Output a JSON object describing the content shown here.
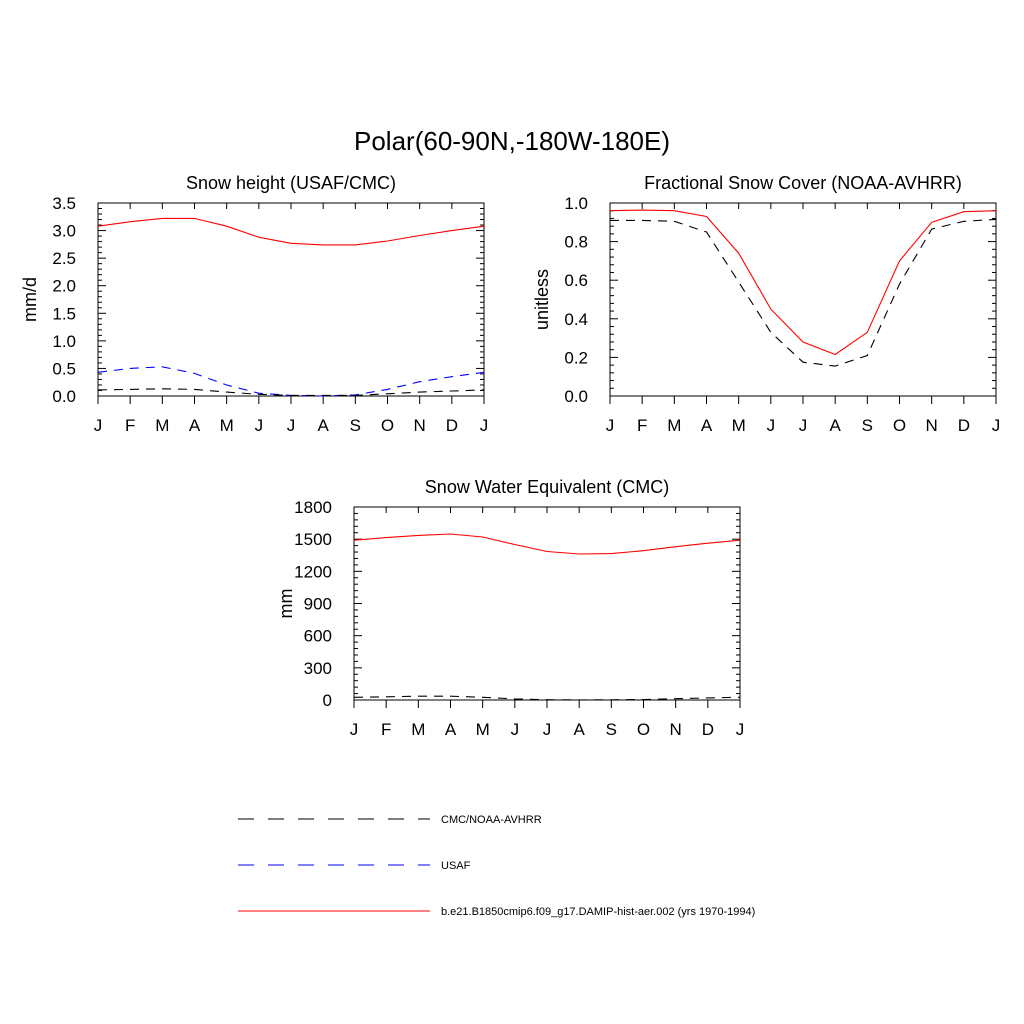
{
  "main_title": "Polar(60-90N,-180W-180E)",
  "months": [
    "J",
    "F",
    "M",
    "A",
    "M",
    "J",
    "J",
    "A",
    "S",
    "O",
    "N",
    "D",
    "J"
  ],
  "colors": {
    "model": "#ff0000",
    "usaf": "#0000ff",
    "obs": "#000000",
    "axis": "#000000"
  },
  "legend": [
    {
      "label": "CMC/NOAA-AVHRR",
      "color": "#000000",
      "dash": "dashed"
    },
    {
      "label": "USAF",
      "color": "#0000ff",
      "dash": "dashed"
    },
    {
      "label": "b.e21.B1850cmip6.f09_g17.DAMIP-hist-aer.002 (yrs 1970-1994)",
      "color": "#ff0000",
      "dash": "solid"
    }
  ],
  "chart_data": [
    {
      "type": "line",
      "title": "Snow height (USAF/CMC)",
      "xlabel": "",
      "ylabel": "mm/d",
      "categories": [
        "J",
        "F",
        "M",
        "A",
        "M",
        "J",
        "J",
        "A",
        "S",
        "O",
        "N",
        "D",
        "J"
      ],
      "ylim": [
        0,
        3.5
      ],
      "yticks": [
        "0.0",
        "0.5",
        "1.0",
        "1.5",
        "2.0",
        "2.5",
        "3.0",
        "3.5"
      ],
      "series": [
        {
          "name": "b.e21.B1850cmip6.f09_g17.DAMIP-hist-aer.002 (yrs 1970-1994)",
          "style": "model",
          "values": [
            3.08,
            3.16,
            3.22,
            3.22,
            3.08,
            2.88,
            2.77,
            2.74,
            2.74,
            2.81,
            2.91,
            3.0,
            3.08
          ]
        },
        {
          "name": "USAF",
          "style": "usaf",
          "values": [
            0.43,
            0.5,
            0.53,
            0.41,
            0.2,
            0.05,
            0.01,
            0.0,
            0.02,
            0.12,
            0.26,
            0.35,
            0.43
          ]
        },
        {
          "name": "CMC/NOAA-AVHRR",
          "style": "obs",
          "values": [
            0.11,
            0.12,
            0.13,
            0.12,
            0.07,
            0.03,
            0.01,
            0.01,
            0.01,
            0.04,
            0.07,
            0.09,
            0.11
          ]
        }
      ]
    },
    {
      "type": "line",
      "title": "Fractional Snow Cover (NOAA-AVHRR)",
      "xlabel": "",
      "ylabel": "unitless",
      "categories": [
        "J",
        "F",
        "M",
        "A",
        "M",
        "J",
        "J",
        "A",
        "S",
        "O",
        "N",
        "D",
        "J"
      ],
      "ylim": [
        0,
        1.0
      ],
      "yticks": [
        "0.0",
        "0.2",
        "0.4",
        "0.6",
        "0.8",
        "1.0"
      ],
      "series": [
        {
          "name": "b.e21.B1850cmip6.f09_g17.DAMIP-hist-aer.002 (yrs 1970-1994)",
          "style": "model",
          "values": [
            0.96,
            0.963,
            0.96,
            0.93,
            0.74,
            0.45,
            0.28,
            0.215,
            0.33,
            0.7,
            0.9,
            0.955,
            0.96
          ]
        },
        {
          "name": "CMC/NOAA-AVHRR",
          "style": "obs",
          "values": [
            0.91,
            0.91,
            0.905,
            0.85,
            0.59,
            0.33,
            0.175,
            0.155,
            0.21,
            0.58,
            0.865,
            0.905,
            0.915
          ]
        }
      ]
    },
    {
      "type": "line",
      "title": "Snow Water Equivalent (CMC)",
      "xlabel": "",
      "ylabel": "mm",
      "categories": [
        "J",
        "F",
        "M",
        "A",
        "M",
        "J",
        "J",
        "A",
        "S",
        "O",
        "N",
        "D",
        "J"
      ],
      "ylim": [
        0,
        1800
      ],
      "yticks": [
        "0",
        "300",
        "600",
        "900",
        "1200",
        "1500",
        "1800"
      ],
      "series": [
        {
          "name": "b.e21.B1850cmip6.f09_g17.DAMIP-hist-aer.002 (yrs 1970-1994)",
          "style": "model",
          "values": [
            1490,
            1515,
            1535,
            1548,
            1520,
            1450,
            1385,
            1362,
            1365,
            1392,
            1430,
            1462,
            1490
          ]
        },
        {
          "name": "CMC/NOAA-AVHRR",
          "style": "obs",
          "values": [
            25,
            30,
            35,
            35,
            25,
            10,
            3,
            1,
            2,
            5,
            12,
            20,
            25
          ]
        }
      ]
    }
  ]
}
